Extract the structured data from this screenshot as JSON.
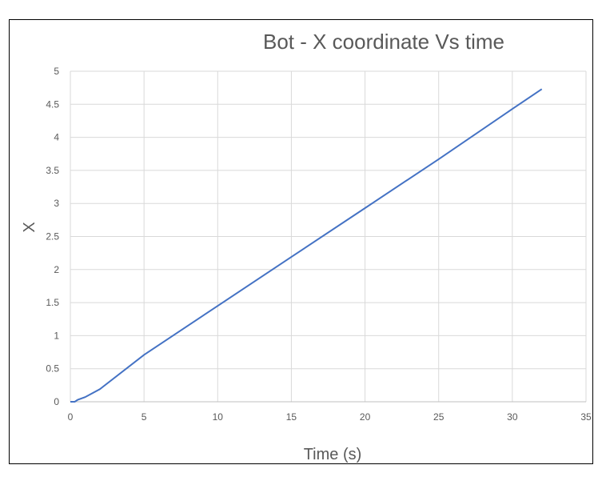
{
  "chart_data": {
    "type": "line",
    "title": "Bot - X coordinate Vs time",
    "xlabel": "Time (s)",
    "ylabel": "X",
    "xlim": [
      0,
      35
    ],
    "ylim": [
      0,
      5
    ],
    "xticks": [
      0,
      5,
      10,
      15,
      20,
      25,
      30,
      35
    ],
    "yticks": [
      0,
      0.5,
      1,
      1.5,
      2,
      2.5,
      3,
      3.5,
      4,
      4.5,
      5
    ],
    "xtick_labels": [
      "0",
      "5",
      "10",
      "15",
      "20",
      "25",
      "30",
      "35"
    ],
    "ytick_labels": [
      "0",
      "0.5",
      "1",
      "1.5",
      "2",
      "2.5",
      "3",
      "3.5",
      "4",
      "4.5",
      "5"
    ],
    "grid": true,
    "legend": "none",
    "series": [
      {
        "color": "#4472c4",
        "x": [
          0,
          0.3,
          0.5,
          1,
          2,
          5,
          10,
          15,
          20,
          25,
          30,
          32
        ],
        "y": [
          0,
          0,
          0.03,
          0.07,
          0.19,
          0.71,
          1.45,
          2.19,
          2.93,
          3.67,
          4.43,
          4.73
        ]
      }
    ]
  }
}
